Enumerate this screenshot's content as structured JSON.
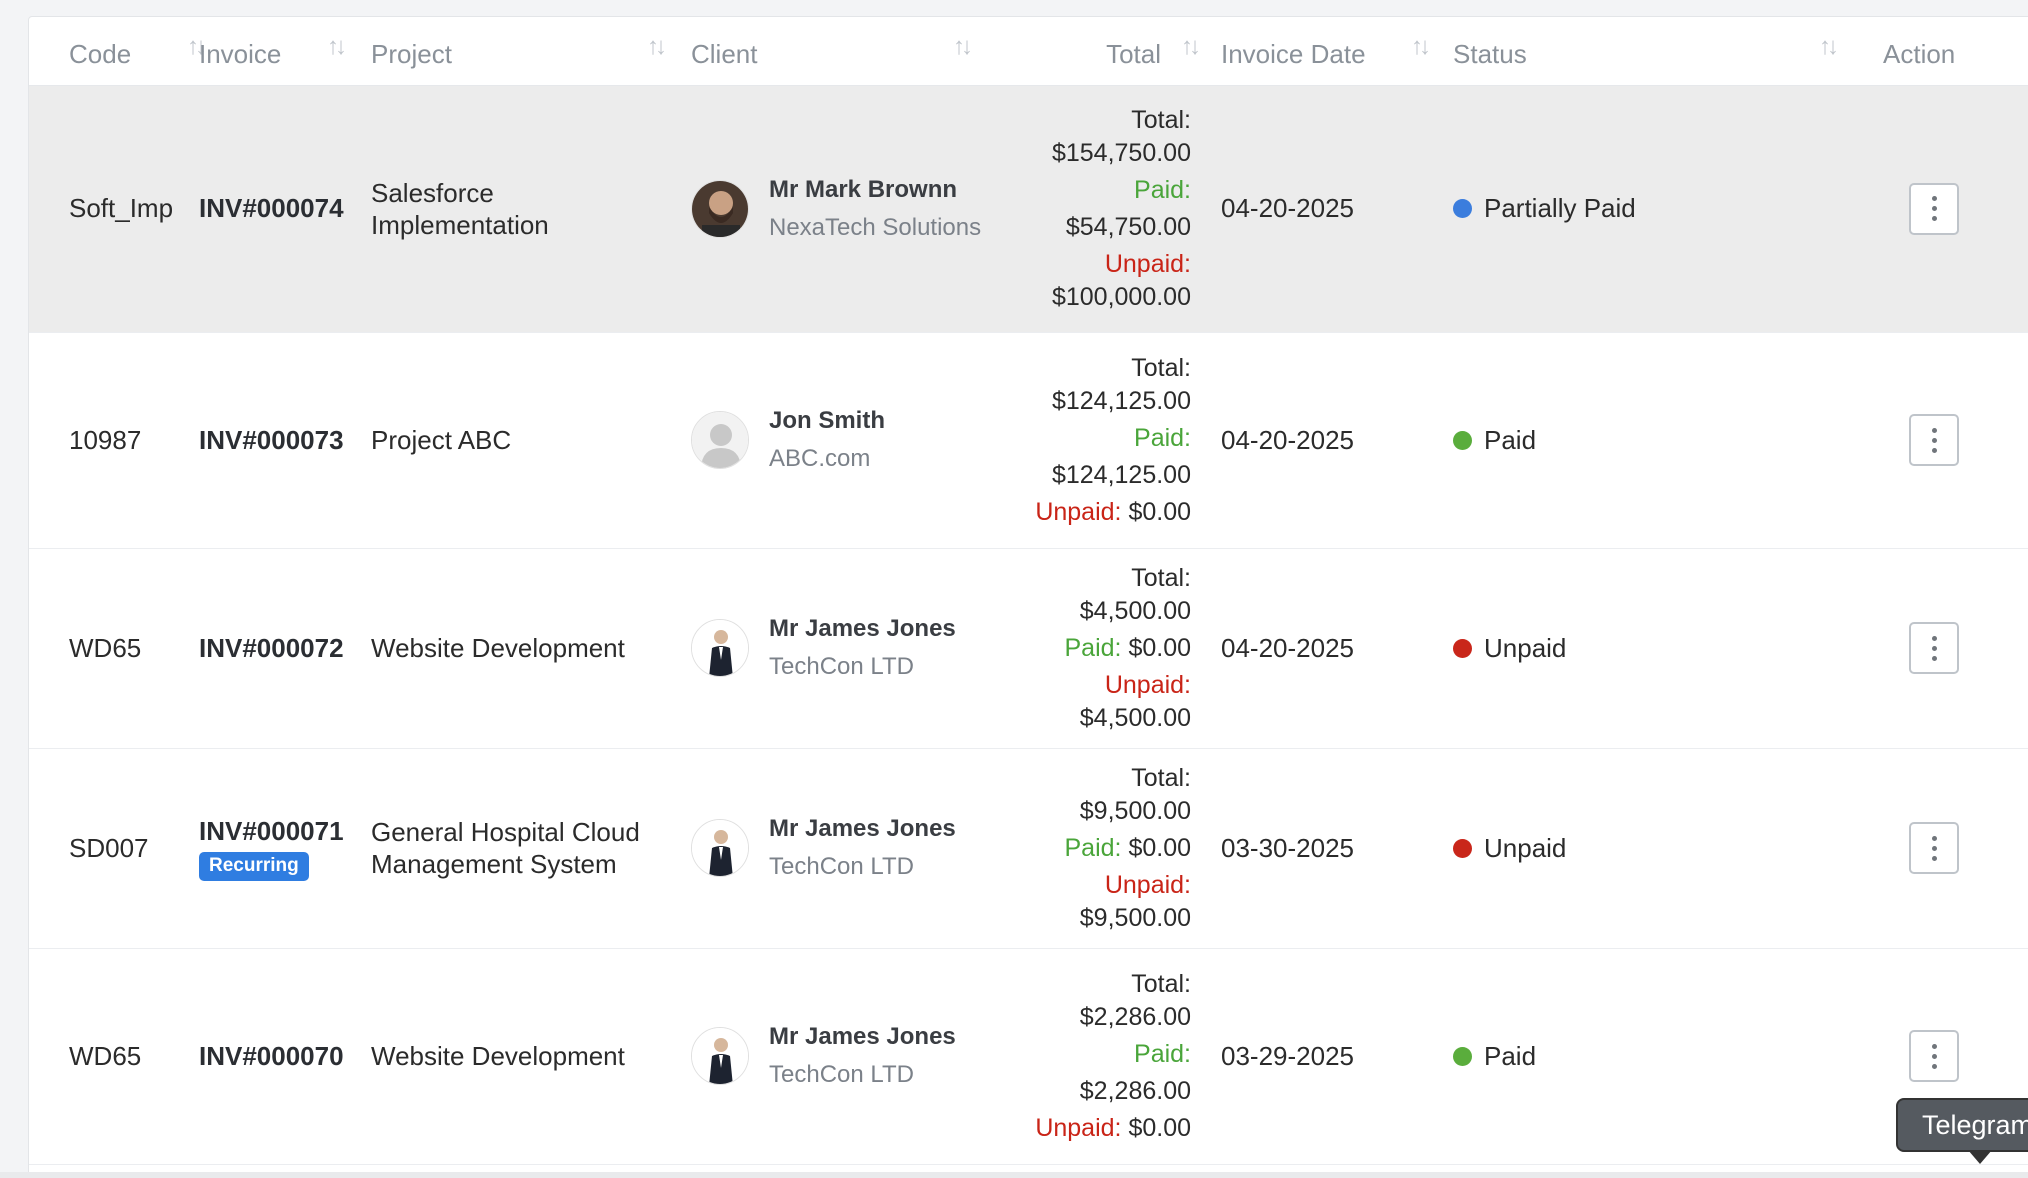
{
  "columns": {
    "code": "Code",
    "invoice": "Invoice",
    "project": "Project",
    "client": "Client",
    "total": "Total",
    "invoice_date": "Invoice Date",
    "status": "Status",
    "action": "Action"
  },
  "labels": {
    "total": "Total:",
    "paid": "Paid:",
    "unpaid": "Unpaid:"
  },
  "colors": {
    "paid_status": "#5aad3c",
    "unpaid_status": "#c9261a",
    "partial_status": "#3b7ddd",
    "recurring_badge": "#2f7de1"
  },
  "rows": [
    {
      "code": "Soft_Imp",
      "invoice": "INV#000074",
      "project": "Salesforce Implementation",
      "client_name": "Mr Mark Brownn",
      "client_company": "NexaTech Solutions",
      "avatar": "photo-bearded-man",
      "total": "$154,750.00",
      "paid": "$54,750.00",
      "unpaid": "$100,000.00",
      "date": "04-20-2025",
      "status": "Partially Paid"
    },
    {
      "code": "10987",
      "invoice": "INV#000073",
      "project": "Project ABC",
      "client_name": "Jon Smith",
      "client_company": "ABC.com",
      "avatar": "default-user",
      "total": "$124,125.00",
      "paid": "$124,125.00",
      "unpaid": "$0.00",
      "date": "04-20-2025",
      "status": "Paid"
    },
    {
      "code": "WD65",
      "invoice": "INV#000072",
      "project": "Website Development",
      "client_name": "Mr James Jones",
      "client_company": "TechCon LTD",
      "avatar": "photo-suited-man",
      "total": "$4,500.00",
      "paid": "$0.00",
      "unpaid": "$4,500.00",
      "date": "04-20-2025",
      "status": "Unpaid"
    },
    {
      "code": "SD007",
      "invoice": "INV#000071",
      "badge": "Recurring",
      "project": "General Hospital Cloud Management System",
      "client_name": "Mr James Jones",
      "client_company": "TechCon LTD",
      "avatar": "photo-suited-man",
      "total": "$9,500.00",
      "paid": "$0.00",
      "unpaid": "$9,500.00",
      "date": "03-30-2025",
      "status": "Unpaid"
    },
    {
      "code": "WD65",
      "invoice": "INV#000070",
      "project": "Website Development",
      "client_name": "Mr James Jones",
      "client_company": "TechCon LTD",
      "avatar": "photo-suited-man",
      "total": "$2,286.00",
      "paid": "$2,286.00",
      "unpaid": "$0.00",
      "date": "03-29-2025",
      "status": "Paid"
    }
  ],
  "tooltip": "Telegram"
}
